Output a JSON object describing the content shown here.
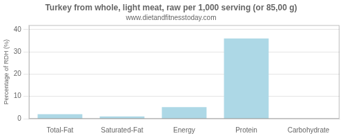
{
  "chart_data": {
    "type": "bar",
    "title": "Turkey from whole, light meat, raw per 1,000 serving (or 85,00 g)",
    "subtitle": "www.dietandfitnesstoday.com",
    "ylabel": "Percentage of RDH (%)",
    "categories": [
      "Total-Fat",
      "Saturated-Fat",
      "Energy",
      "Protein",
      "Carbohydrate"
    ],
    "values": [
      2.0,
      1.0,
      5.2,
      36.0,
      0.0
    ],
    "color": "#add8e6",
    "ylim": [
      0,
      42
    ],
    "yticks": [
      0,
      10,
      20,
      30,
      40
    ],
    "grid": true
  }
}
